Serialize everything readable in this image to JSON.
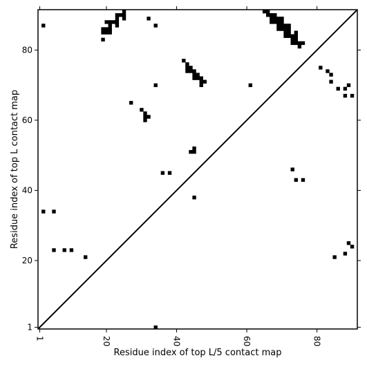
{
  "chart_data": {
    "type": "heatmap",
    "title": "",
    "xlabel": "Residue index of top L/5 contact map",
    "ylabel": "Residue index of top L contact map",
    "xlim": [
      0.5,
      91.5
    ],
    "ylim": [
      0.5,
      91.5
    ],
    "x_ticks": [
      1,
      20,
      40,
      60,
      80
    ],
    "y_ticks": [
      1,
      20,
      40,
      60,
      80
    ],
    "grid": false,
    "legend": "none",
    "diagonal_line": true,
    "cell_color": "#000000",
    "background_color": "#ffffff",
    "upper_triangle_contacts_top_L": [
      [
        2,
        87
      ],
      [
        19,
        83
      ],
      [
        19,
        85
      ],
      [
        19,
        86
      ],
      [
        20,
        85
      ],
      [
        20,
        86
      ],
      [
        20,
        88
      ],
      [
        21,
        85
      ],
      [
        21,
        86
      ],
      [
        21,
        87
      ],
      [
        21,
        88
      ],
      [
        22,
        88
      ],
      [
        23,
        87
      ],
      [
        23,
        88
      ],
      [
        23,
        89
      ],
      [
        23,
        90
      ],
      [
        24,
        90
      ],
      [
        25,
        89
      ],
      [
        25,
        90
      ],
      [
        25,
        91
      ],
      [
        32,
        89
      ],
      [
        34,
        87
      ],
      [
        27,
        65
      ],
      [
        30,
        63
      ],
      [
        31,
        60
      ],
      [
        31,
        61
      ],
      [
        31,
        62
      ],
      [
        32,
        61
      ],
      [
        34,
        70
      ],
      [
        61,
        70
      ],
      [
        42,
        77
      ],
      [
        43,
        74
      ],
      [
        43,
        75
      ],
      [
        43,
        76
      ],
      [
        44,
        74
      ],
      [
        44,
        75
      ],
      [
        45,
        72
      ],
      [
        45,
        73
      ],
      [
        45,
        74
      ],
      [
        46,
        72
      ],
      [
        46,
        73
      ],
      [
        47,
        70
      ],
      [
        47,
        71
      ],
      [
        47,
        72
      ],
      [
        48,
        71
      ],
      [
        65,
        91
      ],
      [
        66,
        90
      ],
      [
        66,
        91
      ],
      [
        67,
        88
      ],
      [
        67,
        89
      ],
      [
        67,
        90
      ],
      [
        68,
        88
      ],
      [
        68,
        89
      ],
      [
        68,
        90
      ],
      [
        69,
        86
      ],
      [
        69,
        87
      ],
      [
        69,
        88
      ],
      [
        69,
        89
      ],
      [
        70,
        86
      ],
      [
        70,
        87
      ],
      [
        70,
        88
      ],
      [
        70,
        89
      ],
      [
        71,
        84
      ],
      [
        71,
        85
      ],
      [
        71,
        86
      ],
      [
        71,
        87
      ],
      [
        72,
        84
      ],
      [
        72,
        85
      ],
      [
        72,
        86
      ],
      [
        72,
        87
      ],
      [
        73,
        82
      ],
      [
        73,
        83
      ],
      [
        73,
        84
      ],
      [
        74,
        82
      ],
      [
        74,
        83
      ],
      [
        74,
        84
      ],
      [
        74,
        85
      ],
      [
        75,
        81
      ],
      [
        75,
        82
      ],
      [
        76,
        82
      ]
    ],
    "lower_triangle_contacts_top_L5": [
      [
        2,
        34
      ],
      [
        5,
        34
      ],
      [
        5,
        23
      ],
      [
        8,
        23
      ],
      [
        10,
        23
      ],
      [
        14,
        21
      ],
      [
        34,
        1
      ],
      [
        36,
        45
      ],
      [
        38,
        45
      ],
      [
        44,
        51
      ],
      [
        45,
        51
      ],
      [
        45,
        52
      ],
      [
        45,
        38
      ],
      [
        73,
        46
      ],
      [
        74,
        43
      ],
      [
        76,
        43
      ],
      [
        81,
        75
      ],
      [
        83,
        74
      ],
      [
        84,
        71
      ],
      [
        84,
        73
      ],
      [
        86,
        69
      ],
      [
        88,
        67
      ],
      [
        88,
        69
      ],
      [
        89,
        70
      ],
      [
        90,
        67
      ],
      [
        85,
        21
      ],
      [
        88,
        22
      ],
      [
        89,
        25
      ],
      [
        90,
        24
      ]
    ]
  }
}
